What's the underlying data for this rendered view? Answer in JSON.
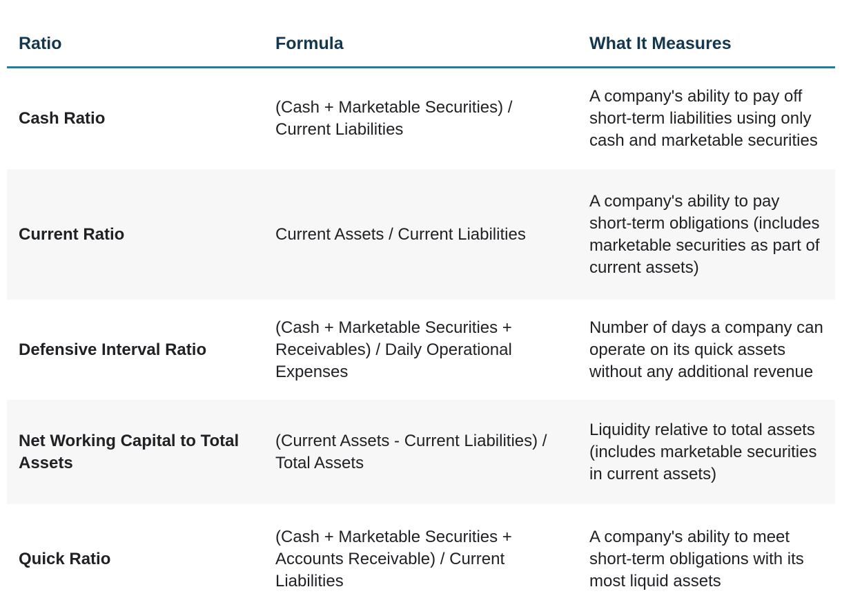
{
  "page": {
    "background": "#ffffff"
  },
  "table": {
    "columns": [
      {
        "label": "Ratio"
      },
      {
        "label": "Formula"
      },
      {
        "label": "What It Measures"
      }
    ],
    "rows": [
      {
        "ratio": "Cash Ratio",
        "formula": "(Cash + Marketable Securities) / Current Liabilities",
        "measures": "A company's ability to pay off short-term liabilities using only cash and marketable securities"
      },
      {
        "ratio": "Current Ratio",
        "formula": "Current Assets / Current Liabilities",
        "measures": "A company's ability to pay short-term obligations (includes marketable securities as part of current assets)"
      },
      {
        "ratio": "Defensive Interval Ratio",
        "formula": "(Cash + Marketable Securities + Receivables) / Daily Operational Expenses",
        "measures": "Number of days a company can operate on its quick assets without any additional revenue"
      },
      {
        "ratio": "Net Working Capital to Total Assets",
        "formula": "(Current Assets - Current Liabilities) / Total Assets",
        "measures": "Liquidity relative to total assets (includes marketable securities in current assets)"
      },
      {
        "ratio": "Quick Ratio",
        "formula": "(Cash + Marketable Securities + Accounts Receivable) / Current Liabilities",
        "measures": "A company's ability to meet short-term obligations with its most liquid assets"
      }
    ],
    "colors": {
      "header_text": "#12374e",
      "header_rule": "#1d7f9d",
      "row_alt_background": "#f7f7f7",
      "body_text": "#202124"
    }
  }
}
